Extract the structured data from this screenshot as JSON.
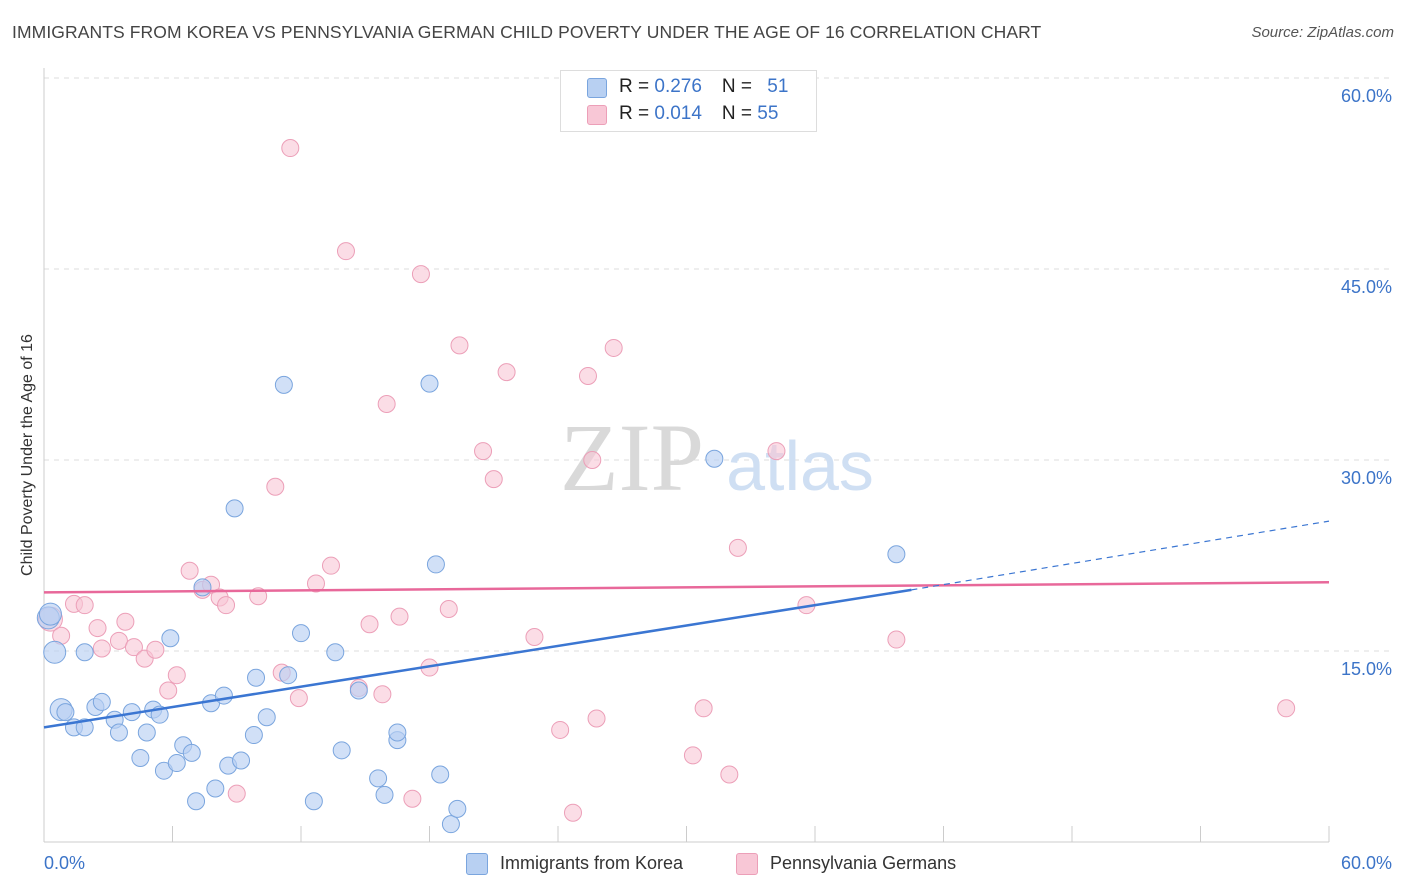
{
  "title": "IMMIGRANTS FROM KOREA VS PENNSYLVANIA GERMAN CHILD POVERTY UNDER THE AGE OF 16 CORRELATION CHART",
  "source": "Source: ZipAtlas.com",
  "watermark": {
    "zip": "ZIP",
    "atlas": "atlas"
  },
  "colors": {
    "korea_fill": "#b8d0f2",
    "korea_stroke": "#7aa5de",
    "korea_line": "#3b76d2",
    "penn_fill": "#f8c7d6",
    "penn_stroke": "#ec9fb8",
    "penn_line": "#e8689a",
    "axis_label": "#3c74c8",
    "grid": "#dddddd"
  },
  "legend_top": {
    "rows": [
      {
        "r_label": "R = ",
        "r_value": "0.276",
        "n_label": "N = ",
        "n_value": "51"
      },
      {
        "r_label": "R = ",
        "r_value": "0.014",
        "n_label": "N = ",
        "n_value": "55"
      }
    ]
  },
  "legend_bottom": {
    "korea": "Immigrants from Korea",
    "penn": "Pennsylvania Germans"
  },
  "chart_data": {
    "type": "scatter",
    "title": "IMMIGRANTS FROM KOREA VS PENNSYLVANIA GERMAN CHILD POVERTY UNDER THE AGE OF 16 CORRELATION CHART",
    "xlabel": "",
    "ylabel": "Child Poverty Under the Age of 16",
    "xlim": [
      0,
      60
    ],
    "ylim": [
      0,
      60
    ],
    "x_tick_labels": [
      "0.0%",
      "60.0%"
    ],
    "y_ticks": [
      15,
      30,
      45,
      60
    ],
    "y_tick_labels": [
      "15.0%",
      "30.0%",
      "45.0%",
      "60.0%"
    ],
    "grid": true,
    "series": [
      {
        "name": "Immigrants from Korea",
        "points": [
          [
            0.2,
            17.6
          ],
          [
            0.5,
            14.9
          ],
          [
            0.8,
            10.4
          ],
          [
            1.0,
            10.2
          ],
          [
            1.4,
            9.0
          ],
          [
            1.9,
            9.0
          ],
          [
            1.9,
            14.9
          ],
          [
            2.4,
            10.6
          ],
          [
            2.7,
            11.0
          ],
          [
            3.3,
            9.6
          ],
          [
            3.5,
            8.6
          ],
          [
            4.1,
            10.2
          ],
          [
            4.5,
            6.6
          ],
          [
            4.8,
            8.6
          ],
          [
            5.1,
            10.4
          ],
          [
            5.4,
            10.0
          ],
          [
            5.6,
            5.6
          ],
          [
            5.9,
            16.0
          ],
          [
            6.2,
            6.2
          ],
          [
            6.5,
            7.6
          ],
          [
            6.9,
            7.0
          ],
          [
            7.1,
            3.2
          ],
          [
            7.4,
            20.0
          ],
          [
            7.8,
            10.9
          ],
          [
            8.0,
            4.2
          ],
          [
            8.4,
            11.5
          ],
          [
            8.6,
            6.0
          ],
          [
            8.9,
            26.2
          ],
          [
            9.2,
            6.4
          ],
          [
            9.8,
            8.4
          ],
          [
            9.9,
            12.9
          ],
          [
            10.4,
            9.8
          ],
          [
            11.2,
            35.9
          ],
          [
            11.4,
            13.1
          ],
          [
            12.0,
            16.4
          ],
          [
            12.6,
            3.2
          ],
          [
            13.6,
            14.9
          ],
          [
            13.9,
            7.2
          ],
          [
            14.7,
            11.9
          ],
          [
            15.6,
            5.0
          ],
          [
            15.9,
            3.7
          ],
          [
            16.5,
            8.0
          ],
          [
            16.5,
            8.6
          ],
          [
            18.0,
            36.0
          ],
          [
            18.3,
            21.8
          ],
          [
            18.5,
            5.3
          ],
          [
            19.0,
            1.4
          ],
          [
            19.3,
            2.6
          ],
          [
            31.3,
            30.1
          ],
          [
            39.8,
            22.6
          ],
          [
            0.3,
            17.9
          ]
        ],
        "trend": {
          "x": [
            0,
            40.5
          ],
          "y": [
            9.0,
            19.8
          ]
        },
        "trend_dashed": {
          "x": [
            40.5,
            60
          ],
          "y": [
            19.8,
            25.2
          ]
        }
      },
      {
        "name": "Pennsylvania Germans",
        "points": [
          [
            0.3,
            17.5
          ],
          [
            0.8,
            16.2
          ],
          [
            1.4,
            18.7
          ],
          [
            1.9,
            18.6
          ],
          [
            2.5,
            16.8
          ],
          [
            2.7,
            15.2
          ],
          [
            3.5,
            15.8
          ],
          [
            3.8,
            17.3
          ],
          [
            4.2,
            15.3
          ],
          [
            4.7,
            14.4
          ],
          [
            5.2,
            15.1
          ],
          [
            5.8,
            11.9
          ],
          [
            6.2,
            13.1
          ],
          [
            6.8,
            21.3
          ],
          [
            7.4,
            19.8
          ],
          [
            7.8,
            20.2
          ],
          [
            8.2,
            19.2
          ],
          [
            8.5,
            18.6
          ],
          [
            9.0,
            3.8
          ],
          [
            10.0,
            19.3
          ],
          [
            10.8,
            27.9
          ],
          [
            11.1,
            13.3
          ],
          [
            11.5,
            54.5
          ],
          [
            11.9,
            11.3
          ],
          [
            12.7,
            20.3
          ],
          [
            13.4,
            21.7
          ],
          [
            14.1,
            46.4
          ],
          [
            14.7,
            12.1
          ],
          [
            15.2,
            17.1
          ],
          [
            15.8,
            11.6
          ],
          [
            16.0,
            34.4
          ],
          [
            16.6,
            17.7
          ],
          [
            17.2,
            3.4
          ],
          [
            17.6,
            44.6
          ],
          [
            18.0,
            13.7
          ],
          [
            18.9,
            18.3
          ],
          [
            19.4,
            39.0
          ],
          [
            20.5,
            30.7
          ],
          [
            21.0,
            28.5
          ],
          [
            21.6,
            36.9
          ],
          [
            22.9,
            16.1
          ],
          [
            24.1,
            8.8
          ],
          [
            24.7,
            2.3
          ],
          [
            25.4,
            36.6
          ],
          [
            25.6,
            30.0
          ],
          [
            25.8,
            9.7
          ],
          [
            26.6,
            38.8
          ],
          [
            30.3,
            6.8
          ],
          [
            30.8,
            10.5
          ],
          [
            32.0,
            5.3
          ],
          [
            32.4,
            23.1
          ],
          [
            34.2,
            30.7
          ],
          [
            35.6,
            18.6
          ],
          [
            39.8,
            15.9
          ],
          [
            58.0,
            10.5
          ]
        ],
        "trend": {
          "x": [
            0,
            60
          ],
          "y": [
            19.6,
            20.4
          ]
        }
      }
    ]
  }
}
